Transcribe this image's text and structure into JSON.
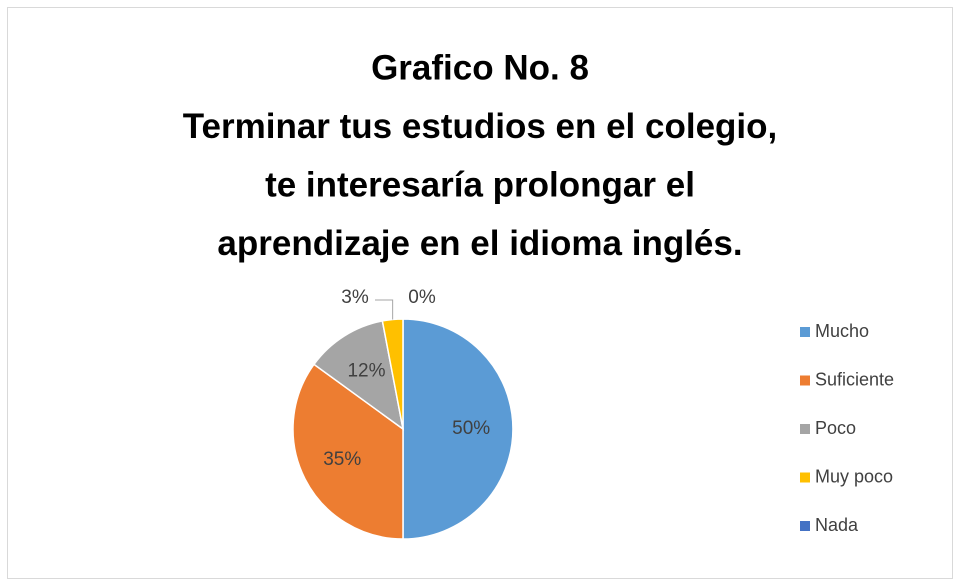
{
  "chart_data": {
    "type": "pie",
    "title": [
      "Grafico No. 8",
      "Terminar tus estudios en el colegio,",
      "te interesaría prolongar el",
      "aprendizaje en el idioma inglés."
    ],
    "categories": [
      "Mucho",
      "Suficiente",
      "Poco",
      "Muy poco",
      "Nada"
    ],
    "values": [
      50,
      35,
      12,
      3,
      0
    ],
    "value_labels": [
      "50%",
      "35%",
      "12%",
      "3%",
      "0%"
    ],
    "colors": [
      "#5b9bd5",
      "#ed7d31",
      "#a5a5a5",
      "#ffc000",
      "#4472c4"
    ],
    "legend": "right"
  }
}
